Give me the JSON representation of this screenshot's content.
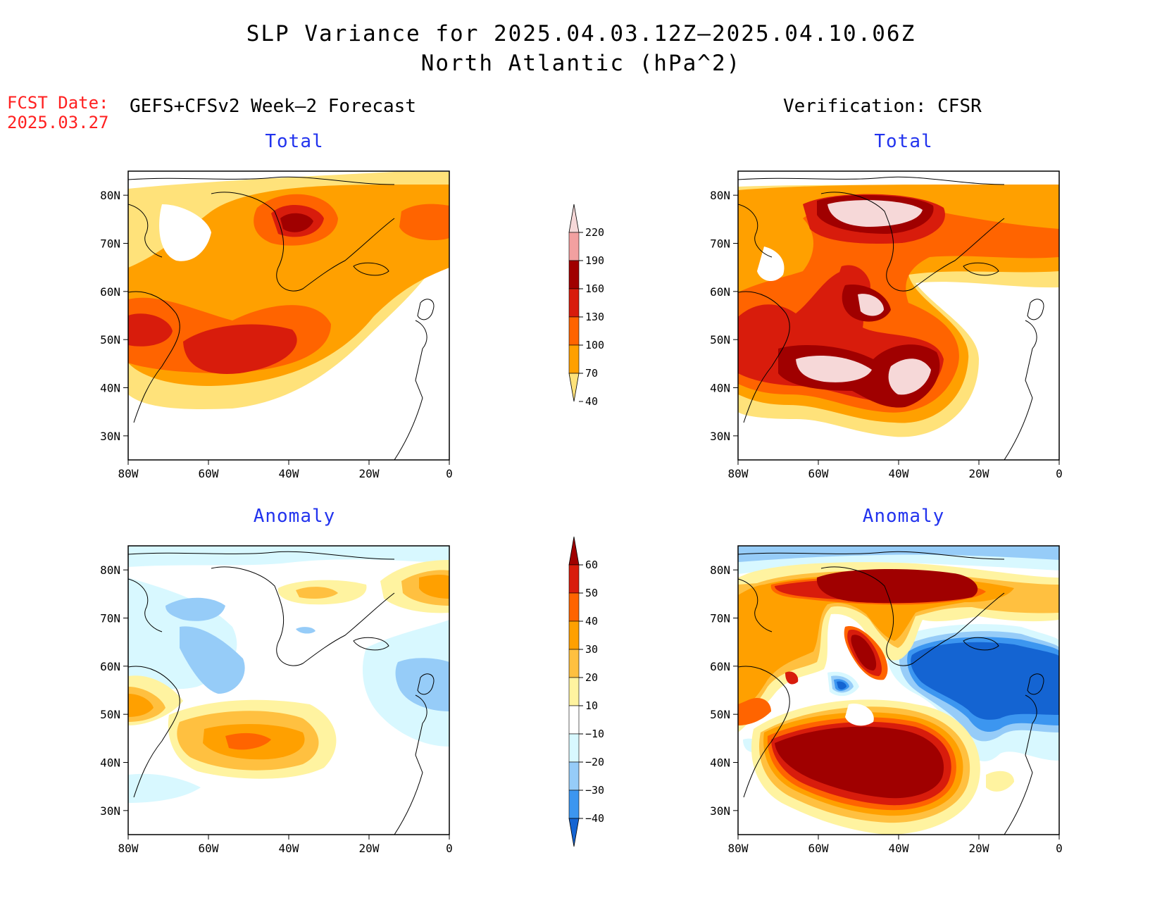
{
  "title": {
    "line1": "SLP Variance for 2025.04.03.12Z–2025.04.10.06Z",
    "line2": "North Atlantic (hPa^2)"
  },
  "fcst": {
    "label": "FCST Date:",
    "date": "2025.03.27"
  },
  "headers": {
    "forecast": "GEFS+CFSv2 Week–2 Forecast",
    "verification": "Verification: CFSR"
  },
  "panels": [
    {
      "id": "fc-total",
      "title": "Total"
    },
    {
      "id": "ver-total",
      "title": "Total"
    },
    {
      "id": "fc-anom",
      "title": "Anomaly"
    },
    {
      "id": "ver-anom",
      "title": "Anomaly"
    }
  ],
  "axes": {
    "lat_labels": [
      "80N",
      "70N",
      "60N",
      "50N",
      "40N",
      "30N"
    ],
    "lon_labels": [
      "80W",
      "60W",
      "40W",
      "20W",
      "0"
    ]
  },
  "colorbar_total": {
    "levels": [
      "220",
      "190",
      "160",
      "130",
      "100",
      "70",
      "40"
    ],
    "colors": [
      "#f6d8d8",
      "#f2a0a0",
      "#a00000",
      "#d81c0c",
      "#ff6400",
      "#ffa000",
      "#ffe27a"
    ]
  },
  "colorbar_anom": {
    "levels": [
      "60",
      "50",
      "40",
      "30",
      "20",
      "10",
      "−10",
      "−20",
      "−30",
      "−40"
    ],
    "colors": [
      "#a00000",
      "#d81c0c",
      "#ff6400",
      "#ffa000",
      "#ffc040",
      "#fff3a0",
      "#ffffff",
      "#d8f8ff",
      "#96ccf8",
      "#3c96f0",
      "#1464d2"
    ]
  },
  "colors": {
    "title_blue": "#2233ee",
    "fcst_red": "#ff2020"
  }
}
